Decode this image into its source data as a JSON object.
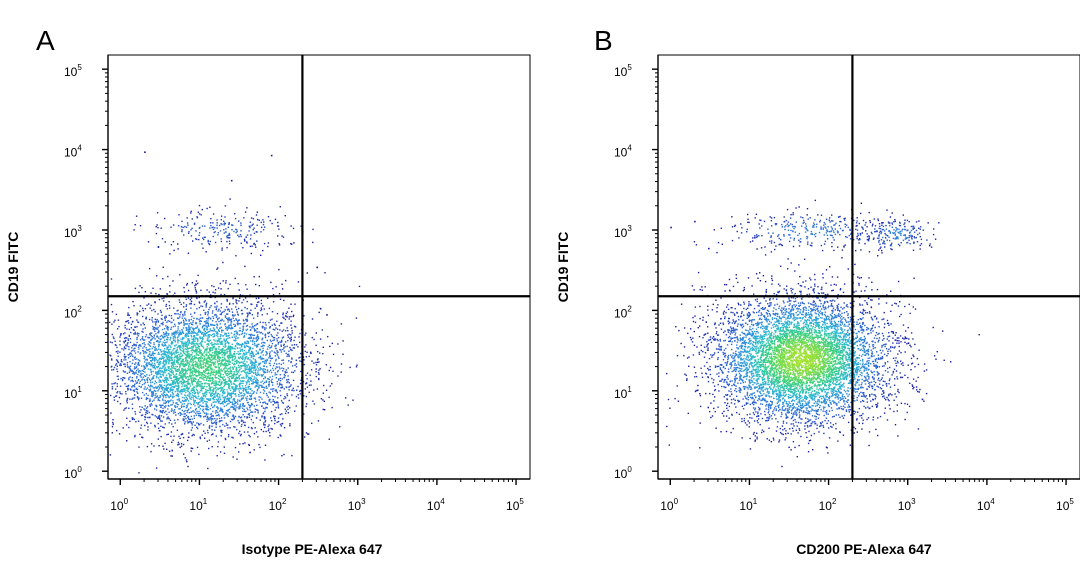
{
  "chart_data": [
    {
      "type": "scatter",
      "panel_label": "A",
      "xlabel": "Isotype PE-Alexa 647",
      "ylabel": "CD19 FITC",
      "x_scale": "log",
      "y_scale": "log",
      "xlim": [
        0.7,
        150000
      ],
      "ylim": [
        0.8,
        150000
      ],
      "x_ticks": [
        {
          "base": "10",
          "exp": "0"
        },
        {
          "base": "10",
          "exp": "1"
        },
        {
          "base": "10",
          "exp": "2"
        },
        {
          "base": "10",
          "exp": "3"
        },
        {
          "base": "10",
          "exp": "4"
        },
        {
          "base": "10",
          "exp": "5"
        }
      ],
      "y_ticks": [
        {
          "base": "10",
          "exp": "0"
        },
        {
          "base": "10",
          "exp": "1"
        },
        {
          "base": "10",
          "exp": "2"
        },
        {
          "base": "10",
          "exp": "3"
        },
        {
          "base": "10",
          "exp": "4"
        },
        {
          "base": "10",
          "exp": "5"
        }
      ],
      "quadrant_gate": {
        "x": 200,
        "y": 150
      },
      "density_colormap": [
        "#1a1aa0",
        "#2f6fd6",
        "#29b6d6",
        "#3cd17a",
        "#a6e22e"
      ],
      "populations": [
        {
          "center": [
            12,
            20
          ],
          "spread_decades": [
            0.62,
            0.42
          ],
          "count": 5200,
          "peak_density": 0.75
        },
        {
          "center": [
            18,
            1000
          ],
          "spread_decades": [
            0.45,
            0.13
          ],
          "count": 240,
          "peak_density": 0.22
        }
      ],
      "sparse_points": [
        [
          2,
          9500
        ],
        [
          80,
          8600
        ],
        [
          300,
          350
        ],
        [
          400,
          90
        ],
        [
          250,
          30
        ],
        [
          25,
          4200
        ]
      ]
    },
    {
      "type": "scatter",
      "panel_label": "B",
      "xlabel": "CD200 PE-Alexa 647",
      "ylabel": "CD19 FITC",
      "x_scale": "log",
      "y_scale": "log",
      "xlim": [
        0.7,
        150000
      ],
      "ylim": [
        0.8,
        150000
      ],
      "x_ticks": [
        {
          "base": "10",
          "exp": "0"
        },
        {
          "base": "10",
          "exp": "1"
        },
        {
          "base": "10",
          "exp": "2"
        },
        {
          "base": "10",
          "exp": "3"
        },
        {
          "base": "10",
          "exp": "4"
        },
        {
          "base": "10",
          "exp": "5"
        }
      ],
      "y_ticks": [
        {
          "base": "10",
          "exp": "0"
        },
        {
          "base": "10",
          "exp": "1"
        },
        {
          "base": "10",
          "exp": "2"
        },
        {
          "base": "10",
          "exp": "3"
        },
        {
          "base": "10",
          "exp": "4"
        },
        {
          "base": "10",
          "exp": "5"
        }
      ],
      "quadrant_gate": {
        "x": 200,
        "y": 150
      },
      "density_colormap": [
        "#1a1aa0",
        "#2f6fd6",
        "#29b6d6",
        "#3cd17a",
        "#a6e22e"
      ],
      "populations": [
        {
          "center": [
            45,
            25
          ],
          "spread_decades": [
            0.55,
            0.4
          ],
          "count": 6200,
          "peak_density": 1.0
        },
        {
          "center": [
            60,
            1000
          ],
          "spread_decades": [
            0.55,
            0.12
          ],
          "count": 320,
          "peak_density": 0.3
        },
        {
          "center": [
            700,
            900
          ],
          "spread_decades": [
            0.22,
            0.1
          ],
          "count": 180,
          "peak_density": 0.35
        }
      ],
      "sparse_points": [
        [
          1,
          1100
        ],
        [
          2,
          1300
        ],
        [
          3,
          600
        ],
        [
          1000,
          40
        ],
        [
          1500,
          8
        ],
        [
          800,
          15
        ]
      ]
    }
  ]
}
